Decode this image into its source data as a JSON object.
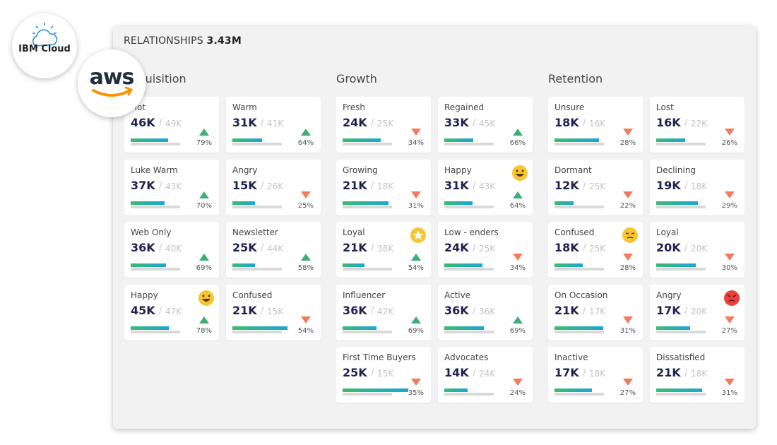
{
  "header": {
    "label": "RELATIONSHIPS",
    "value": "3.43M"
  },
  "logos": {
    "ibm": "IBM Cloud",
    "aws": "aws"
  },
  "sections": [
    {
      "title": "Acquisition",
      "columns": [
        [
          {
            "name": "Hot",
            "value": "46K",
            "total": "49K",
            "change": "79%",
            "trend": "up"
          },
          {
            "name": "Luke Warm",
            "value": "37K",
            "total": "43K",
            "change": "70%",
            "trend": "up"
          },
          {
            "name": "Web Only",
            "value": "36K",
            "total": "40K",
            "change": "69%",
            "trend": "up"
          },
          {
            "name": "Happy",
            "value": "45K",
            "total": "47K",
            "change": "78%",
            "trend": "up",
            "icon": "grin"
          }
        ],
        [
          {
            "name": "Warm",
            "value": "31K",
            "total": "41K",
            "change": "64%",
            "trend": "up"
          },
          {
            "name": "Angry",
            "value": "15K",
            "total": "26K",
            "change": "25%",
            "trend": "down"
          },
          {
            "name": "Newsletter",
            "value": "25K",
            "total": "44K",
            "change": "58%",
            "trend": "up"
          },
          {
            "name": "Confused",
            "value": "21K",
            "total": "15K",
            "change": "54%",
            "trend": "down"
          }
        ]
      ]
    },
    {
      "title": "Growth",
      "columns": [
        [
          {
            "name": "Fresh",
            "value": "24K",
            "total": "25K",
            "change": "34%",
            "trend": "down"
          },
          {
            "name": "Growing",
            "value": "21K",
            "total": "18K",
            "change": "31%",
            "trend": "down"
          },
          {
            "name": "Loyal",
            "value": "21K",
            "total": "38K",
            "change": "54%",
            "trend": "up",
            "icon": "star"
          },
          {
            "name": "Influencer",
            "value": "36K",
            "total": "42K",
            "change": "69%",
            "trend": "up"
          },
          {
            "name": "First Time Buyers",
            "value": "25K",
            "total": "15K",
            "change": "35%",
            "trend": "down"
          }
        ],
        [
          {
            "name": "Regained",
            "value": "33K",
            "total": "45K",
            "change": "66%",
            "trend": "up"
          },
          {
            "name": "Happy",
            "value": "31K",
            "total": "43K",
            "change": "64%",
            "trend": "up",
            "icon": "grin"
          },
          {
            "name": "Low - enders",
            "value": "24K",
            "total": "25K",
            "change": "34%",
            "trend": "down"
          },
          {
            "name": "Active",
            "value": "36K",
            "total": "36K",
            "change": "69%",
            "trend": "up"
          },
          {
            "name": "Advocates",
            "value": "14K",
            "total": "24K",
            "change": "24%",
            "trend": "down"
          }
        ]
      ]
    },
    {
      "title": "Retention",
      "columns": [
        [
          {
            "name": "Unsure",
            "value": "18K",
            "total": "16K",
            "change": "28%",
            "trend": "down"
          },
          {
            "name": "Dormant",
            "value": "12K",
            "total": "25K",
            "change": "22%",
            "trend": "down"
          },
          {
            "name": "Confused",
            "value": "18K",
            "total": "25K",
            "change": "28%",
            "trend": "down",
            "icon": "confused"
          },
          {
            "name": "On Occasion",
            "value": "21K",
            "total": "17K",
            "change": "31%",
            "trend": "down"
          },
          {
            "name": "Inactive",
            "value": "17K",
            "total": "18K",
            "change": "27%",
            "trend": "down"
          }
        ],
        [
          {
            "name": "Lost",
            "value": "16K",
            "total": "22K",
            "change": "26%",
            "trend": "down"
          },
          {
            "name": "Declining",
            "value": "19K",
            "total": "18K",
            "change": "29%",
            "trend": "down"
          },
          {
            "name": "Loyal",
            "value": "20K",
            "total": "20K",
            "change": "30%",
            "trend": "down"
          },
          {
            "name": "Angry",
            "value": "17K",
            "total": "20K",
            "change": "27%",
            "trend": "down",
            "icon": "angry"
          },
          {
            "name": "Dissatisfied",
            "value": "21K",
            "total": "18K",
            "change": "31%",
            "trend": "down"
          }
        ]
      ]
    }
  ]
}
